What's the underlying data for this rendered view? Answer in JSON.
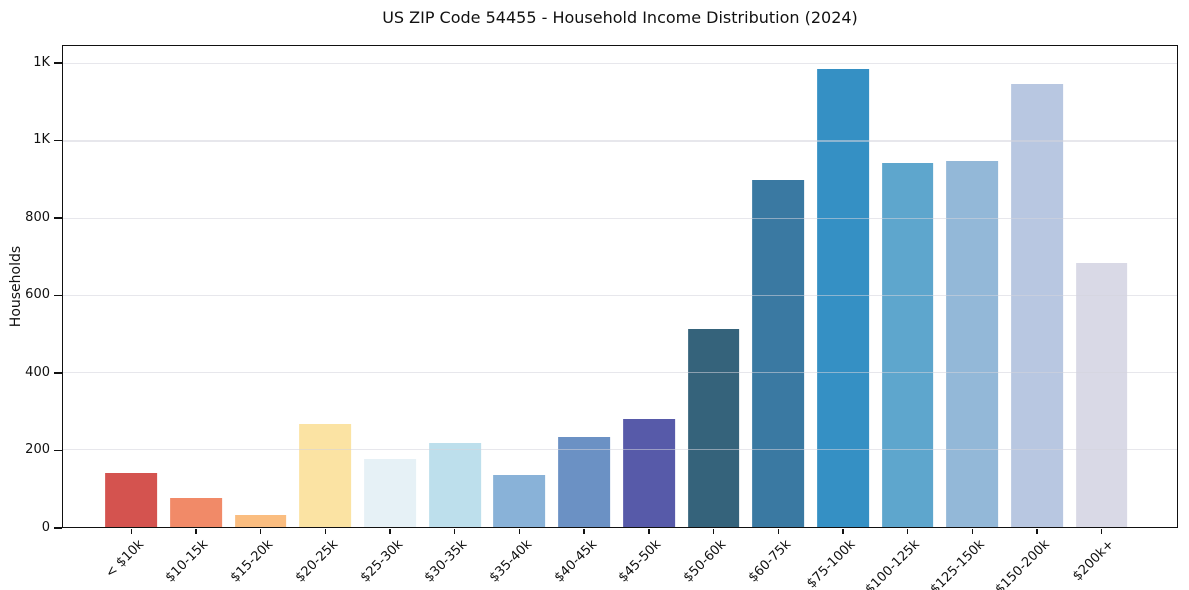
{
  "chart_data": {
    "type": "bar",
    "title": "US ZIP Code 54455 - Household Income Distribution (2024)",
    "xlabel": "",
    "ylabel": "Households",
    "ylim": [
      0,
      1246
    ],
    "grid": "horizontal, light gray, drawn over bars",
    "legend": "none",
    "background": "#ffffff",
    "axis_color": "#111111",
    "gridline_color": "#e8e8ed",
    "yticks": [
      {
        "value": 0,
        "label": "0"
      },
      {
        "value": 200,
        "label": "200"
      },
      {
        "value": 400,
        "label": "400"
      },
      {
        "value": 600,
        "label": "600"
      },
      {
        "value": 800,
        "label": "800"
      },
      {
        "value": 1000,
        "label": "1K"
      },
      {
        "value": 1200,
        "label": "1K"
      }
    ],
    "categories": [
      "< $10k",
      "$10-15k",
      "$15-20k",
      "$20-25k",
      "$25-30k",
      "$30-35k",
      "$35-40k",
      "$40-45k",
      "$45-50k",
      "$50-60k",
      "$60-75k",
      "$75-100k",
      "$100-125k",
      "$125-150k",
      "$150-200k",
      "$200k+"
    ],
    "values": [
      139,
      76,
      30,
      266,
      175,
      217,
      136,
      232,
      280,
      512,
      898,
      1186,
      944,
      948,
      1147,
      685
    ],
    "bar_colors": [
      "#d4534f",
      "#f18a68",
      "#fabd80",
      "#fbe3a3",
      "#e6f1f6",
      "#bddfec",
      "#89b2d8",
      "#6b91c4",
      "#575aa9",
      "#35637b",
      "#3a79a2",
      "#3590c4",
      "#5ea6cd",
      "#93b8d8",
      "#b8c7e1",
      "#d9d9e6"
    ]
  }
}
